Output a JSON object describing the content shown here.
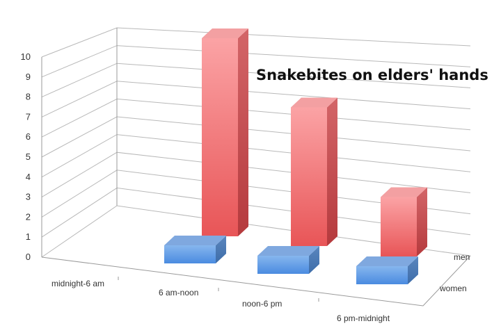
{
  "chart_data": {
    "type": "bar",
    "subtype": "3d-column",
    "title": "Snakebites on elders' hands",
    "categories": [
      "midnight-6 am",
      "6 am-noon",
      "noon-6 pm",
      "6 pm-midnight"
    ],
    "series": [
      {
        "name": "men",
        "values": [
          0,
          10,
          7,
          3
        ],
        "color": "#e8585a"
      },
      {
        "name": "women",
        "values": [
          0,
          1,
          1,
          1
        ],
        "color": "#4f87d6"
      }
    ],
    "yticks": [
      "0",
      "1",
      "2",
      "3",
      "4",
      "5",
      "6",
      "7",
      "8",
      "9",
      "10"
    ],
    "ylim": [
      0,
      10
    ],
    "grid": true,
    "xlabel": "",
    "ylabel": ""
  }
}
